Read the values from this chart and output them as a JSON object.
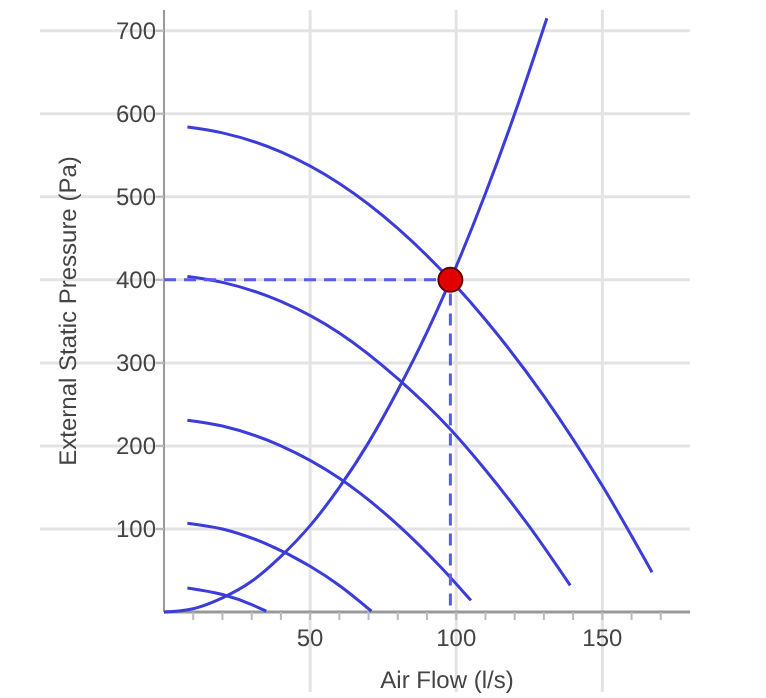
{
  "chart_data": {
    "type": "line",
    "xlabel": "Air Flow (l/s)",
    "ylabel": "External Static Pressure (Pa)",
    "xlim": [
      0,
      180
    ],
    "ylim": [
      0,
      725
    ],
    "xticks": [
      {
        "value": 10,
        "label": null
      },
      {
        "value": 20,
        "label": null
      },
      {
        "value": 30,
        "label": null
      },
      {
        "value": 40,
        "label": null
      },
      50,
      {
        "value": 60,
        "label": null
      },
      {
        "value": 70,
        "label": null
      },
      {
        "value": 80,
        "label": null
      },
      {
        "value": 90,
        "label": null
      },
      100,
      {
        "value": 110,
        "label": null
      },
      {
        "value": 120,
        "label": null
      },
      {
        "value": 130,
        "label": null
      },
      {
        "value": 140,
        "label": null
      },
      150,
      {
        "value": 160,
        "label": null
      },
      {
        "value": 170,
        "label": null
      }
    ],
    "yticks": [
      100,
      200,
      300,
      400,
      500,
      600,
      700
    ],
    "grid": true,
    "marker": "none",
    "line_style": "solid",
    "series": [
      {
        "color": "#3c3cd8",
        "x": [
          8,
          20,
          40,
          60,
          80,
          110,
          130,
          150,
          167
        ],
        "values": [
          584,
          577,
          554,
          516,
          462,
          352,
          260,
          152,
          48
        ]
      },
      {
        "color": "#3c3cd8",
        "x": [
          8,
          20,
          40,
          60,
          80,
          98,
          110,
          125,
          139
        ],
        "values": [
          404,
          397,
          374,
          336,
          281,
          220,
          171,
          103,
          32
        ]
      },
      {
        "color": "#3c3cd8",
        "x": [
          8,
          20,
          40,
          60,
          80,
          95,
          105
        ],
        "values": [
          231,
          224,
          200,
          161,
          105,
          53,
          14
        ]
      },
      {
        "color": "#3c3cd8",
        "x": [
          8,
          20,
          35,
          50,
          60,
          71
        ],
        "values": [
          107,
          100,
          82,
          55,
          32,
          1
        ]
      },
      {
        "color": "#3c3cd8",
        "x": [
          8,
          20,
          30,
          35
        ],
        "values": [
          29,
          21,
          9,
          1
        ]
      },
      {
        "color": "#3c3cd8",
        "x": [
          0,
          10,
          20,
          30,
          40,
          50,
          60,
          70,
          80,
          90,
          110,
          120,
          131
        ],
        "values": [
          0,
          4,
          17,
          37,
          67,
          104,
          150,
          204,
          267,
          337,
          504,
          600,
          715
        ]
      },
      {
        "color": "#5a5af0",
        "line_style": "dashed",
        "x": [
          0,
          98,
          98
        ],
        "values": [
          400,
          400,
          0
        ]
      },
      {
        "type": "scatter",
        "color": "#e00000",
        "marker": "circle",
        "x": [
          98
        ],
        "values": [
          400
        ]
      }
    ]
  }
}
